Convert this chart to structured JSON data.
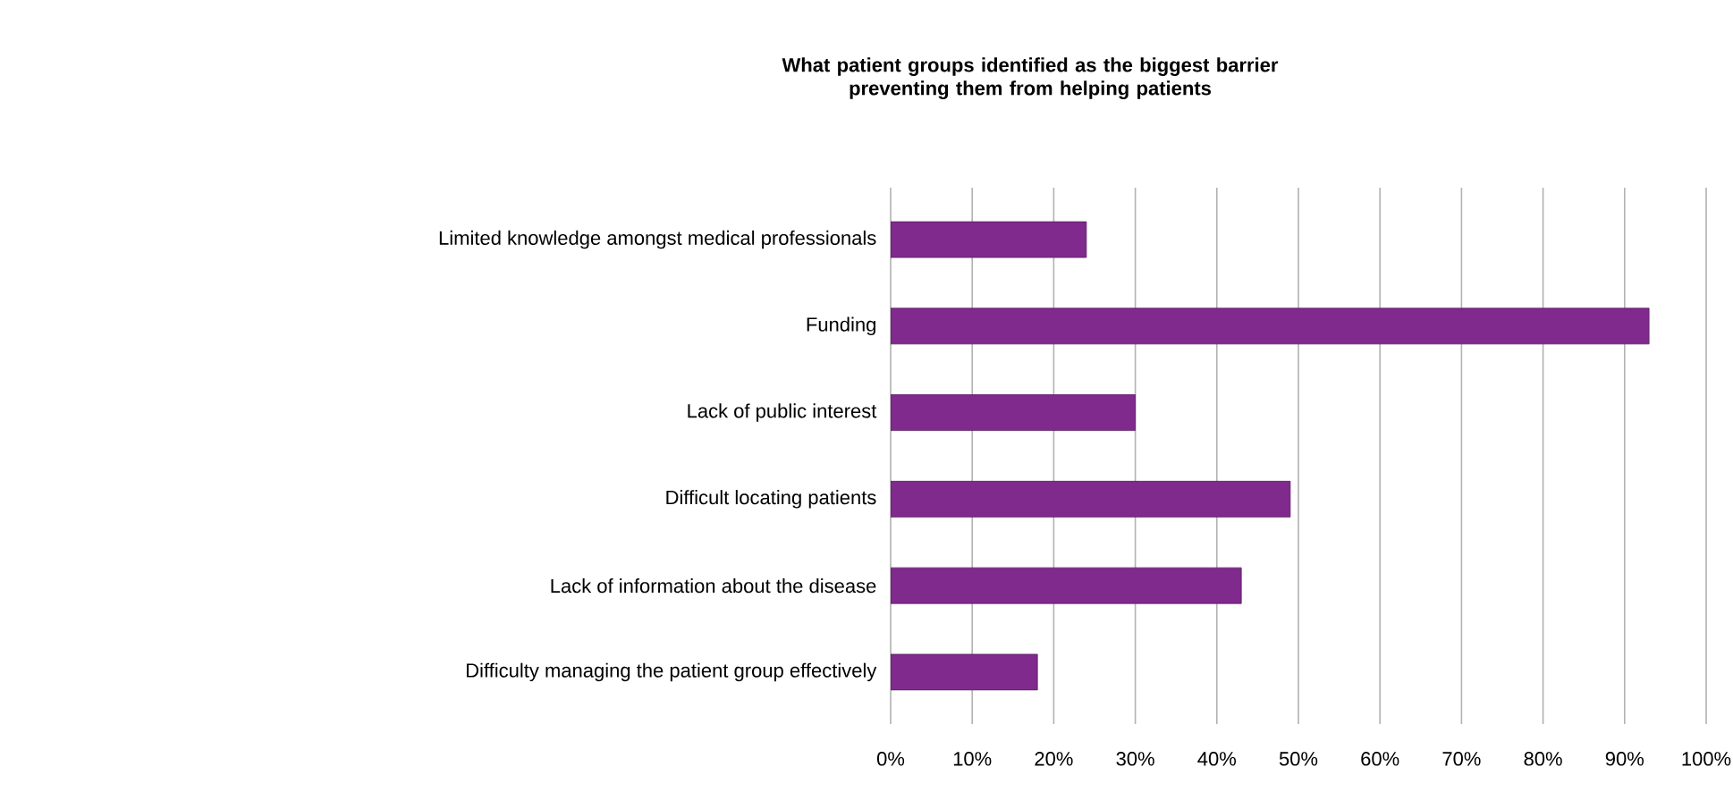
{
  "chart_data": {
    "type": "bar",
    "orientation": "horizontal",
    "title": "What patient groups identified as the biggest barrier\npreventing them from helping patients",
    "categories": [
      "Limited knowledge amongst medical professionals",
      "Funding",
      "Lack of public interest",
      "Difficult locating patients",
      "Lack of information about the disease",
      "Difficulty managing the patient group effectively"
    ],
    "values": [
      24,
      93,
      30,
      49,
      43,
      18
    ],
    "color": "#7f2a8c",
    "xlim": [
      0,
      100
    ],
    "xticks": [
      {
        "value": 0,
        "label": "0%"
      },
      {
        "value": 10,
        "label": "10%"
      },
      {
        "value": 20,
        "label": "20%"
      },
      {
        "value": 30,
        "label": "30%"
      },
      {
        "value": 40,
        "label": "40%"
      },
      {
        "value": 50,
        "label": "50%"
      },
      {
        "value": 60,
        "label": "60%"
      },
      {
        "value": 70,
        "label": "70%"
      },
      {
        "value": 80,
        "label": "80%"
      },
      {
        "value": 90,
        "label": "90%"
      },
      {
        "value": 100,
        "label": "100%"
      }
    ],
    "grid": "x"
  }
}
